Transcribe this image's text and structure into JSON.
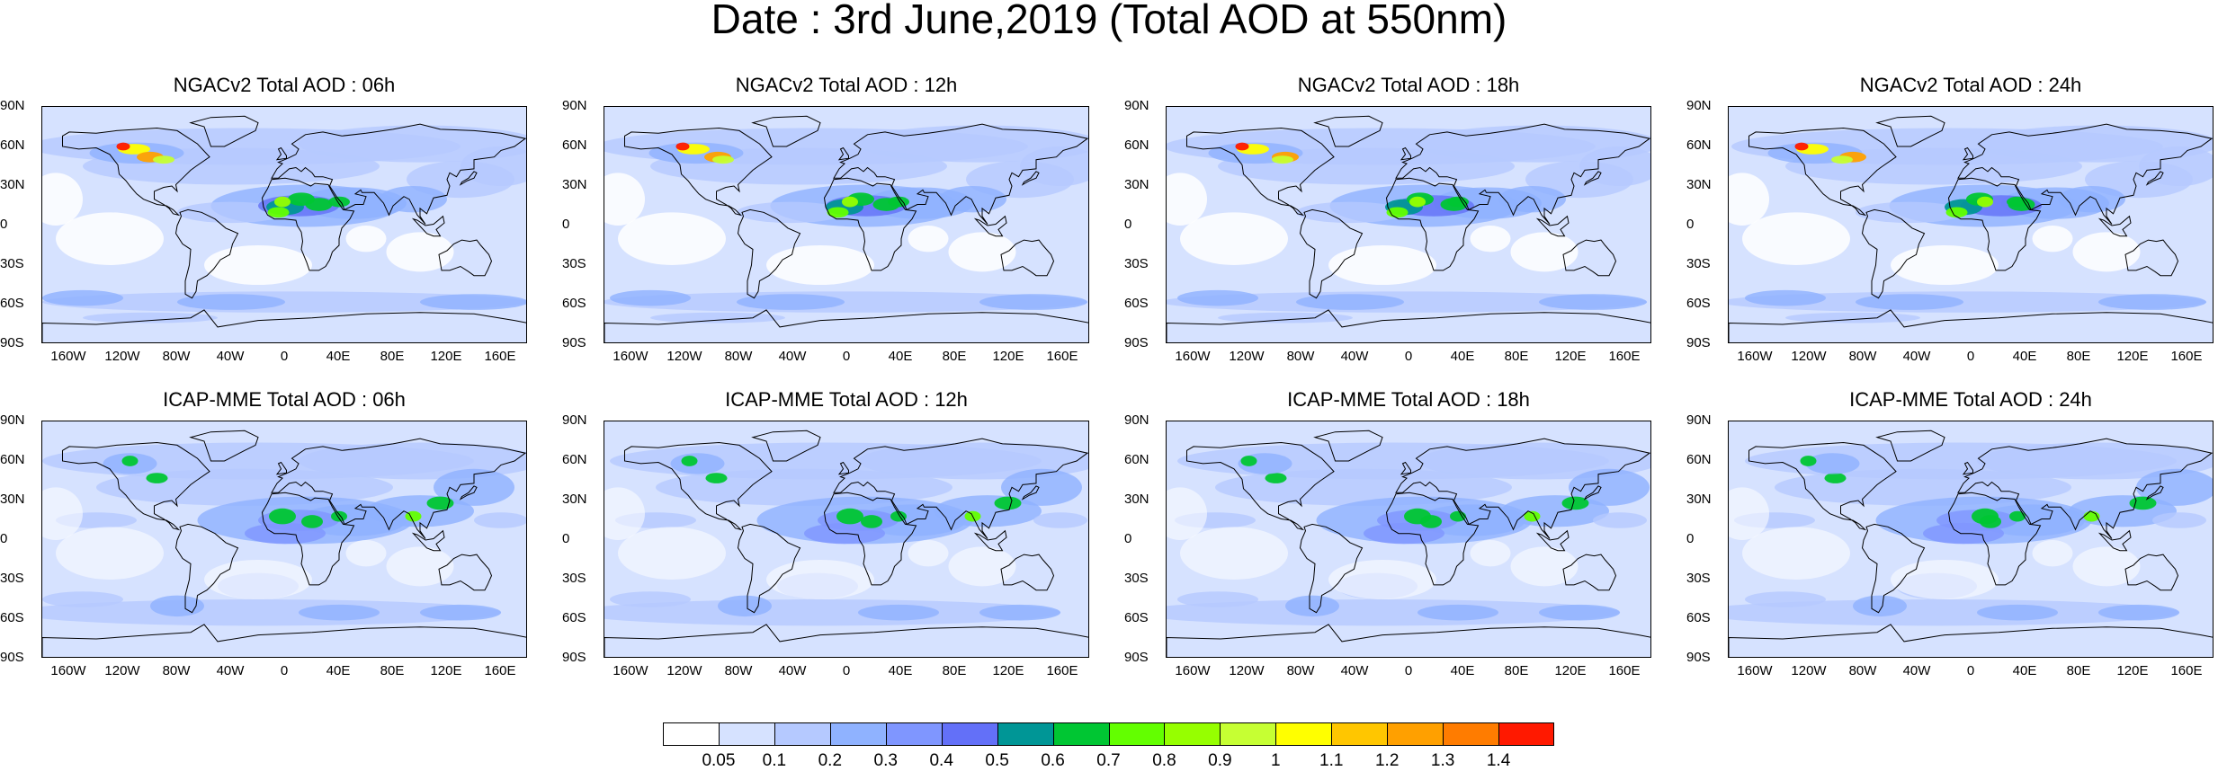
{
  "title": "Date : 3rd June,2019 (Total AOD at 550nm)",
  "panels": [
    {
      "title": "NGACv2 Total AOD : 06h",
      "model": "NGACv2",
      "hour": "06h"
    },
    {
      "title": "NGACv2 Total AOD : 12h",
      "model": "NGACv2",
      "hour": "12h"
    },
    {
      "title": "NGACv2 Total AOD : 18h",
      "model": "NGACv2",
      "hour": "18h"
    },
    {
      "title": "NGACv2 Total AOD : 24h",
      "model": "NGACv2",
      "hour": "24h"
    },
    {
      "title": "ICAP-MME Total AOD : 06h",
      "model": "ICAP-MME",
      "hour": "06h"
    },
    {
      "title": "ICAP-MME Total AOD : 12h",
      "model": "ICAP-MME",
      "hour": "12h"
    },
    {
      "title": "ICAP-MME Total AOD : 18h",
      "model": "ICAP-MME",
      "hour": "18h"
    },
    {
      "title": "ICAP-MME Total AOD : 24h",
      "model": "ICAP-MME",
      "hour": "24h"
    }
  ],
  "lat_labels": [
    "90N",
    "60N",
    "30N",
    "0",
    "30S",
    "60S",
    "90S"
  ],
  "lon_labels": [
    "160W",
    "120W",
    "80W",
    "40W",
    "0",
    "40E",
    "80E",
    "120E",
    "160E"
  ],
  "colorbar": {
    "levels": [
      "0.05",
      "0.1",
      "0.2",
      "0.3",
      "0.4",
      "0.5",
      "0.6",
      "0.7",
      "0.8",
      "0.9",
      "1",
      "1.1",
      "1.2",
      "1.3",
      "1.4"
    ],
    "colors": [
      "#ffffff",
      "#d6e2ff",
      "#b5c9ff",
      "#8fb2ff",
      "#7f96ff",
      "#6370f8",
      "#0063ff",
      "#009696",
      "#00c633",
      "#63ff00",
      "#96ff00",
      "#c6ff33",
      "#ffff00",
      "#ffc600",
      "#ffa000",
      "#ff7c00",
      "#ff1900"
    ]
  }
}
